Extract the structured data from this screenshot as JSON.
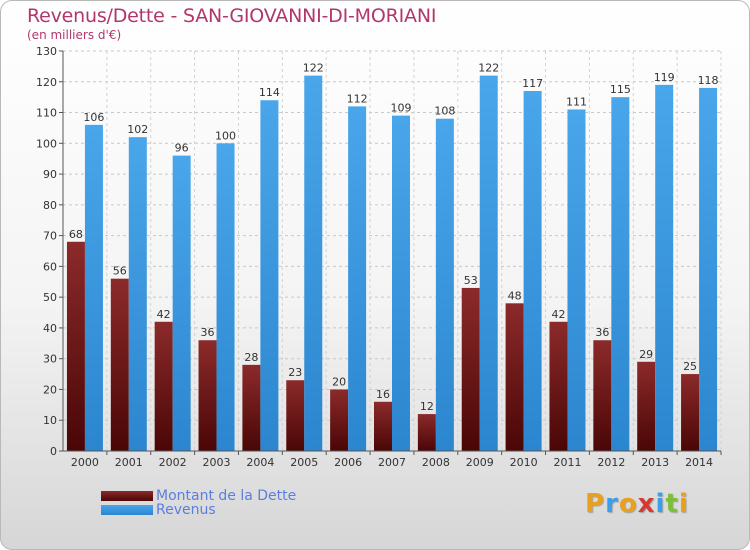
{
  "title": "Revenus/Dette - SAN-GIOVANNI-DI-MORIANI",
  "subtitle": "(en milliers d'€)",
  "legend": {
    "dette": "Montant de la Dette",
    "revenus": "Revenus"
  },
  "logo": {
    "letters": [
      "P",
      "r",
      "o",
      "x",
      "i",
      "t",
      "i"
    ],
    "colors": [
      "#e8a020",
      "#3a9ee8",
      "#e8a020",
      "#d43a30",
      "#3a9ee8",
      "#7cbf3a",
      "#e8a020"
    ]
  },
  "colors": {
    "dette": "#7a1e1e",
    "revenus": "#3a97de",
    "title": "#b0376a"
  },
  "chart_data": {
    "type": "bar",
    "title": "Revenus/Dette - SAN-GIOVANNI-DI-MORIANI",
    "subtitle": "(en milliers d'€)",
    "categories": [
      "2000",
      "2001",
      "2002",
      "2003",
      "2004",
      "2005",
      "2006",
      "2007",
      "2008",
      "2009",
      "2010",
      "2011",
      "2012",
      "2013",
      "2014"
    ],
    "series": [
      {
        "name": "Montant de la Dette",
        "values": [
          68,
          56,
          42,
          36,
          28,
          23,
          20,
          16,
          12,
          53,
          48,
          42,
          36,
          29,
          25
        ]
      },
      {
        "name": "Revenus",
        "values": [
          106,
          102,
          96,
          100,
          114,
          122,
          112,
          109,
          108,
          122,
          117,
          111,
          115,
          119,
          118
        ]
      }
    ],
    "ylim": [
      0,
      130
    ],
    "yticks": [
      0,
      10,
      20,
      30,
      40,
      50,
      60,
      70,
      80,
      90,
      100,
      110,
      120,
      130
    ],
    "grid": true,
    "legend_position": "bottom-left"
  }
}
